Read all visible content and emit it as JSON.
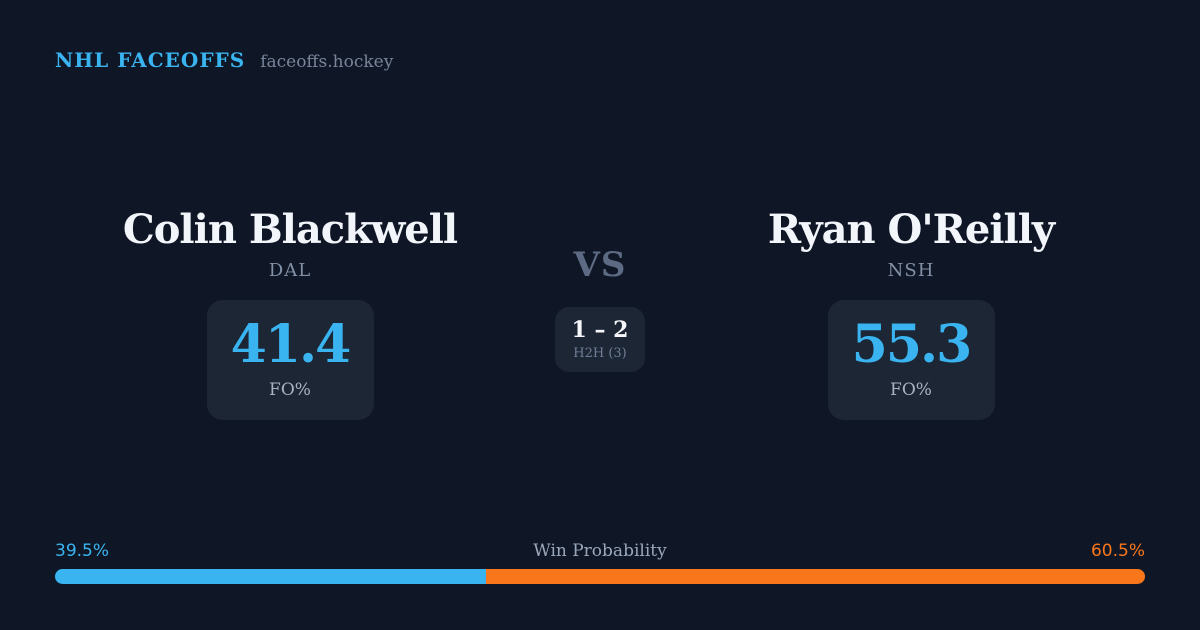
{
  "header": {
    "brand": "NHL FACEOFFS",
    "domain": "faceoffs.hockey"
  },
  "matchup": {
    "vs_label": "VS",
    "h2h": {
      "score": "1 – 2",
      "label": "H2H (3)"
    },
    "players": [
      {
        "name": "Colin Blackwell",
        "team": "DAL",
        "fo_value": "41.4",
        "fo_label": "FO%"
      },
      {
        "name": "Ryan O'Reilly",
        "team": "NSH",
        "fo_value": "55.3",
        "fo_label": "FO%"
      }
    ]
  },
  "win_probability": {
    "label": "Win Probability",
    "left_pct": "39.5%",
    "right_pct": "60.5%",
    "left_value": 39.5,
    "right_value": 60.5
  },
  "colors": {
    "background": "#0f1726",
    "card": "#1c2634",
    "accent_blue": "#3ab4f0",
    "accent_orange": "#f9761a",
    "text_primary": "#f2f5fa",
    "text_muted": "#8290a6"
  }
}
